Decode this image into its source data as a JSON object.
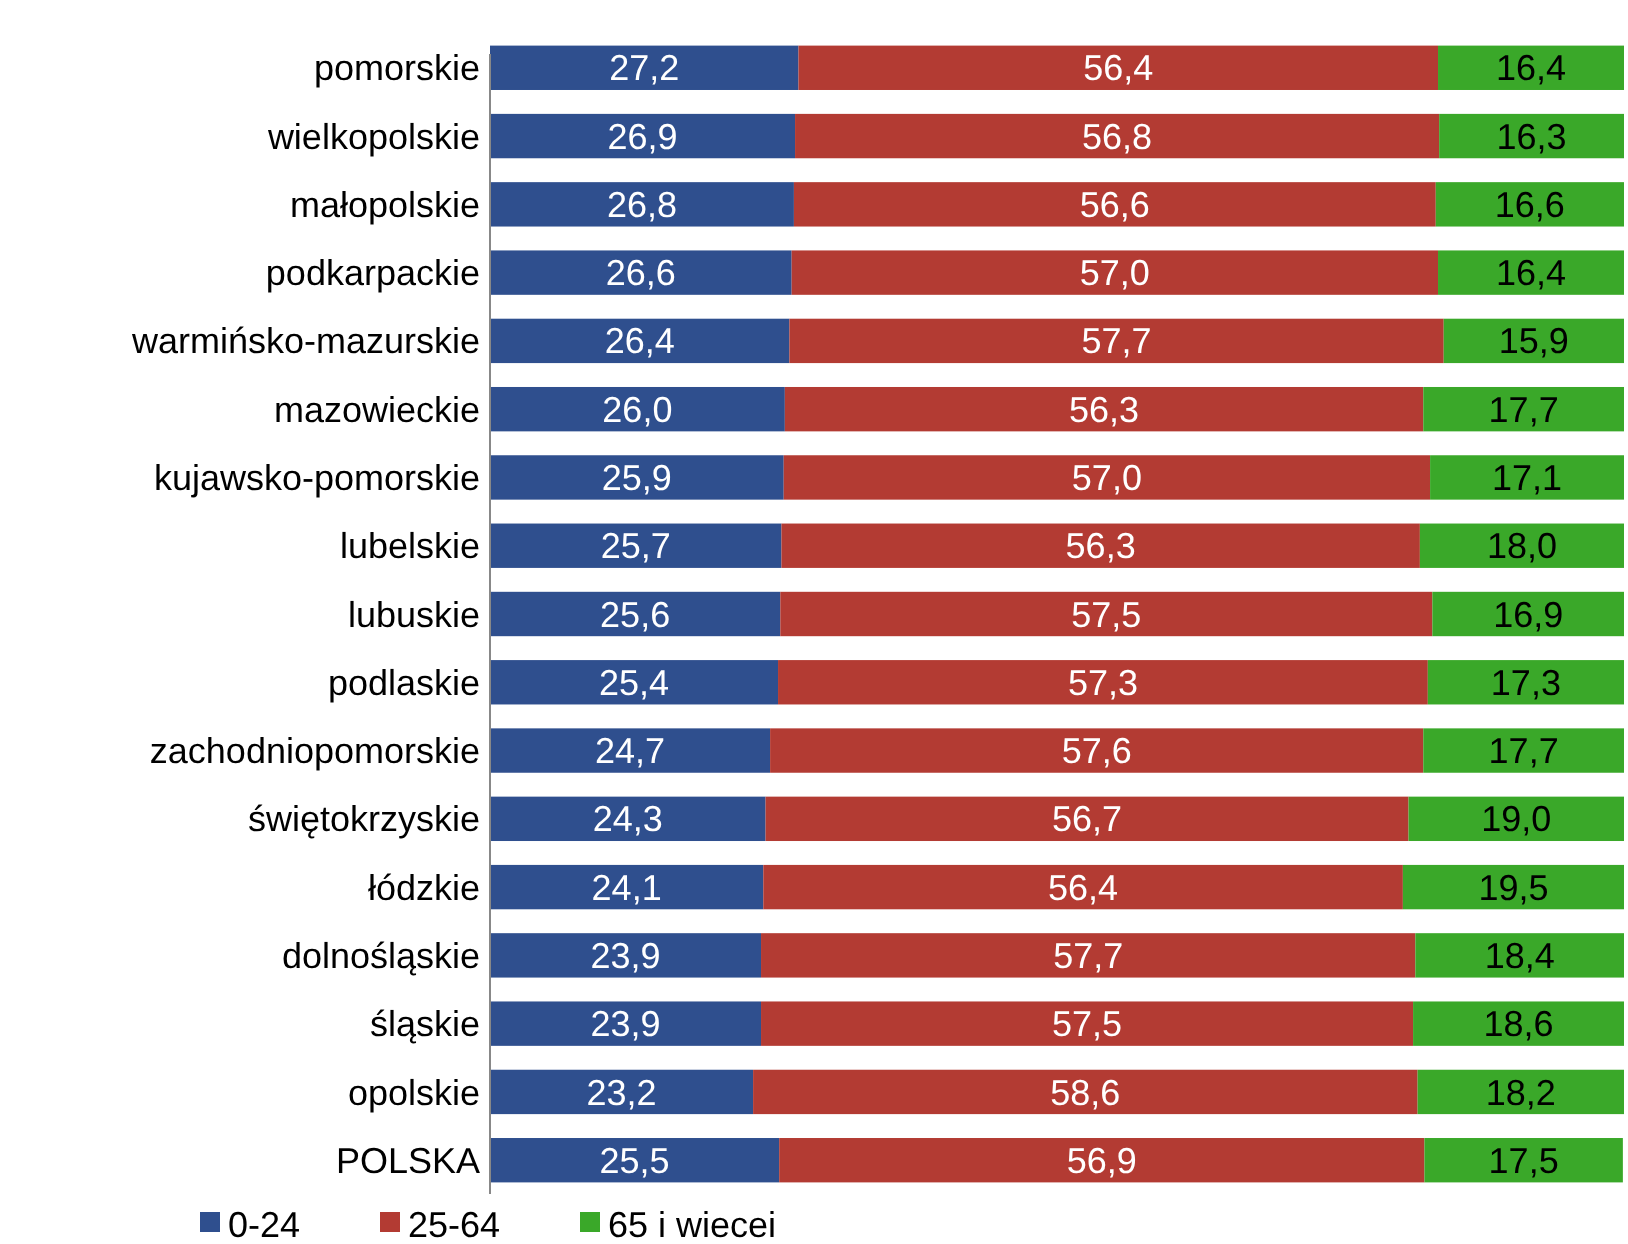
{
  "chart_data": {
    "type": "bar",
    "orientation": "horizontal",
    "stacked": true,
    "legend": "bottom left",
    "xlim": [
      0,
      100
    ],
    "tick_labels": "y",
    "categories": [
      "pomorskie",
      "wielkopolskie",
      "małopolskie",
      "podkarpackie",
      "warmińsko-mazurskie",
      "mazowieckie",
      "kujawsko-pomorskie",
      "lubelskie",
      "lubuskie",
      "podlaskie",
      "zachodniopomorskie",
      "świętokrzyskie",
      "łódzkie",
      "dolnośląskie",
      "śląskie",
      "opolskie",
      "POLSKA"
    ],
    "series": [
      {
        "name": "0-24",
        "color": "#2f4f8e",
        "values": [
          27.2,
          26.9,
          26.8,
          26.6,
          26.4,
          26.0,
          25.9,
          25.7,
          25.6,
          25.4,
          24.7,
          24.3,
          24.1,
          23.9,
          23.9,
          23.2,
          25.5
        ],
        "value_labels": [
          "27,2",
          "26,9",
          "26,8",
          "26,6",
          "26,4",
          "26,0",
          "25,9",
          "25,7",
          "25,6",
          "25,4",
          "24,7",
          "24,3",
          "24,1",
          "23,9",
          "23,9",
          "23,2",
          "25,5"
        ]
      },
      {
        "name": "25-64",
        "color": "#b33b33",
        "values": [
          56.4,
          56.8,
          56.6,
          57.0,
          57.7,
          56.3,
          57.0,
          56.3,
          57.5,
          57.3,
          57.6,
          56.7,
          56.4,
          57.7,
          57.5,
          58.6,
          56.9
        ],
        "value_labels": [
          "56,4",
          "56,8",
          "56,6",
          "57,0",
          "57,7",
          "56,3",
          "57,0",
          "56,3",
          "57,5",
          "57,3",
          "57,6",
          "56,7",
          "56,4",
          "57,7",
          "57,5",
          "58,6",
          "56,9"
        ]
      },
      {
        "name": "65 i wiecei",
        "color": "#3aa829",
        "values": [
          16.4,
          16.3,
          16.6,
          16.4,
          15.9,
          17.7,
          17.1,
          18.0,
          16.9,
          17.3,
          17.7,
          19.0,
          19.5,
          18.4,
          18.6,
          18.2,
          17.5
        ],
        "value_labels": [
          "16,4",
          "16,3",
          "16,6",
          "16,4",
          "15,9",
          "17,7",
          "17,1",
          "18,0",
          "16,9",
          "17,3",
          "17,7",
          "19,0",
          "19,5",
          "18,4",
          "18,6",
          "18,2",
          "17,5"
        ]
      }
    ]
  }
}
